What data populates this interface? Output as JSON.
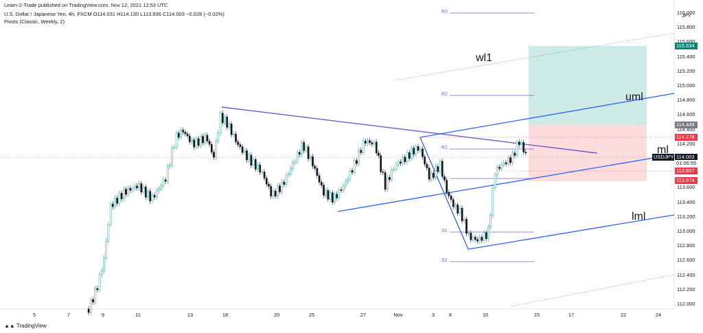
{
  "header": {
    "line1": "Learn-2-Trade published on TradingView.com, Nov 12, 2021 12:53 UTC",
    "line2": "U.S. Dollar / Japanese Yen, 4h, FXCM  O114.031  H114.130  L113.936  C114.003  −0.028 (−0.02%)",
    "line3": "Pivots (Classic, Weekly, 2)"
  },
  "price_axis": {
    "currency": "JPY",
    "ticks": [
      "116.000",
      "115.800",
      "115.600",
      "115.400",
      "115.200",
      "115.000",
      "114.800",
      "114.600",
      "114.400",
      "114.200",
      "114.000",
      "113.800",
      "113.600",
      "113.400",
      "113.200",
      "113.000",
      "112.800",
      "112.600",
      "112.400",
      "112.200",
      "112.000"
    ]
  },
  "time_axis": {
    "ticks": [
      "5",
      "7",
      "9",
      "11",
      "13",
      "18",
      "20",
      "25",
      "27",
      "Nov",
      "3",
      "5",
      "8",
      "10",
      "15",
      "17",
      "22",
      "24"
    ]
  },
  "badges": {
    "target": "115.534",
    "entry": "114.449",
    "r1": "114.278",
    "symbol": "USDJPY",
    "current": "114.003",
    "countdown": "01:06:55",
    "stop_line": "113.807",
    "stop": "113.674"
  },
  "pivots": {
    "r3": "R3",
    "r2": "R2",
    "r1": "R1",
    "s1": "S1",
    "s2": "S2"
  },
  "labels": {
    "wl1": "wl1",
    "uml": "uml",
    "ml": "ml",
    "lml": "lml"
  },
  "footer": {
    "brand": "TradingView"
  },
  "colors": {
    "up": "#26a69a",
    "down": "#131722",
    "pivot": "#7e57c2",
    "pitchfork": "#2962ff",
    "target_zone": "#b2dfdb",
    "stop_zone": "#ffcdd2"
  }
}
